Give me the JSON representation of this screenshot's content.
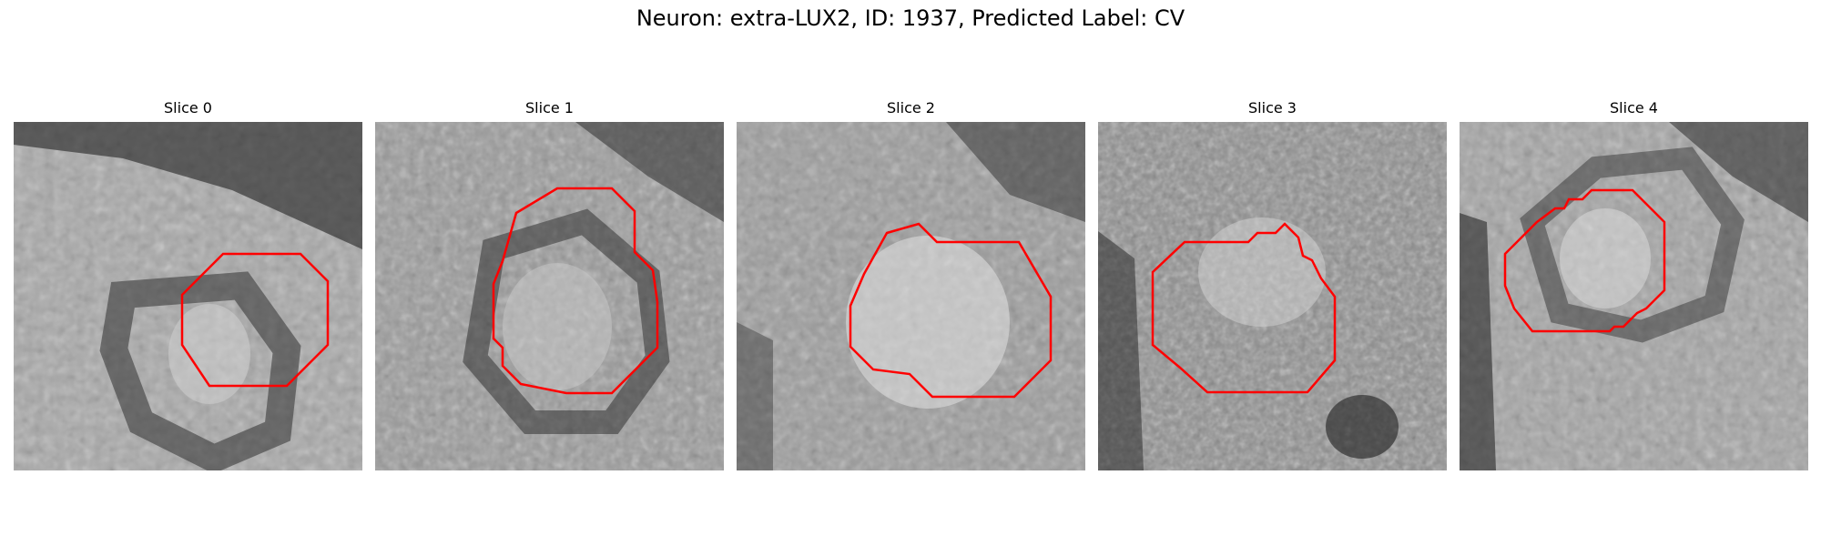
{
  "figure": {
    "title": "Neuron: extra-LUX2, ID: 1937, Predicted Label: CV"
  },
  "colors": {
    "contour": "#ff0000",
    "background": "#ffffff"
  },
  "panels": [
    {
      "label": "Slice 0"
    },
    {
      "label": "Slice 1"
    },
    {
      "label": "Slice 2"
    },
    {
      "label": "Slice 3"
    },
    {
      "label": "Slice 4"
    }
  ]
}
